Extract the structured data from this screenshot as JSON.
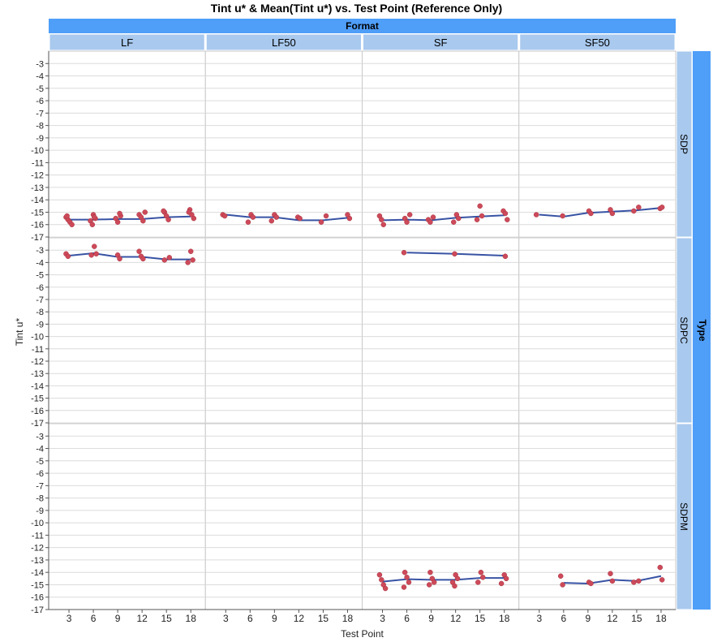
{
  "chart_data": {
    "type": "scatter",
    "title": "Tint u* & Mean(Tint u*) vs. Test Point (Reference Only)",
    "xlabel": "Test Point",
    "ylabel": "Tint u*",
    "column_group_label": "Format",
    "row_group_label": "Type",
    "columns": [
      "LF",
      "LF50",
      "SF",
      "SF50"
    ],
    "rows": [
      "SDP",
      "SDPC",
      "SDPM"
    ],
    "x_ticks": [
      3,
      6,
      9,
      12,
      15,
      18
    ],
    "y_ticks": [
      -3,
      -4,
      -5,
      -6,
      -7,
      -8,
      -9,
      -10,
      -11,
      -12,
      -13,
      -14,
      -15,
      -16,
      -17
    ],
    "xlim": [
      0.5,
      19.8
    ],
    "ylim": [
      -17,
      -2
    ],
    "grid": true,
    "colors": {
      "points": "#cd4a5a",
      "mean_line": "#3853a4",
      "header": "#4f9ef8",
      "strip": "#a9c9ee",
      "grid": "#dcdcdc"
    },
    "panels": [
      {
        "column": "LF",
        "row": "SDP",
        "points": [
          [
            3,
            -15.4
          ],
          [
            3,
            -15.6
          ],
          [
            3,
            -15.8
          ],
          [
            3,
            -16.0
          ],
          [
            3,
            -15.3
          ],
          [
            6,
            -15.2
          ],
          [
            6,
            -15.5
          ],
          [
            6,
            -15.7
          ],
          [
            6,
            -16.0
          ],
          [
            6,
            -15.4
          ],
          [
            9,
            -15.3
          ],
          [
            9,
            -15.5
          ],
          [
            9,
            -15.8
          ],
          [
            9,
            -15.1
          ],
          [
            12,
            -15.2
          ],
          [
            12,
            -15.4
          ],
          [
            12,
            -15.7
          ],
          [
            12,
            -15.0
          ],
          [
            15,
            -15.0
          ],
          [
            15,
            -15.3
          ],
          [
            15,
            -15.6
          ],
          [
            15,
            -14.9
          ],
          [
            18,
            -14.8
          ],
          [
            18,
            -15.2
          ],
          [
            18,
            -15.5
          ],
          [
            18,
            -15.0
          ]
        ],
        "mean": [
          [
            3,
            -15.6
          ],
          [
            6,
            -15.6
          ],
          [
            9,
            -15.55
          ],
          [
            12,
            -15.55
          ],
          [
            15,
            -15.4
          ],
          [
            18,
            -15.35
          ]
        ]
      },
      {
        "column": "LF",
        "row": "SDPC",
        "points": [
          [
            3,
            -3.3
          ],
          [
            3,
            -3.5
          ],
          [
            6,
            -2.7
          ],
          [
            6,
            -3.3
          ],
          [
            6,
            -3.4
          ],
          [
            9,
            -3.4
          ],
          [
            9,
            -3.7
          ],
          [
            12,
            -3.1
          ],
          [
            12,
            -3.5
          ],
          [
            12,
            -3.7
          ],
          [
            15,
            -3.6
          ],
          [
            15,
            -3.8
          ],
          [
            18,
            -3.1
          ],
          [
            18,
            -3.8
          ],
          [
            18,
            -4.0
          ]
        ],
        "mean": [
          [
            3,
            -3.45
          ],
          [
            6,
            -3.25
          ],
          [
            9,
            -3.55
          ],
          [
            12,
            -3.55
          ],
          [
            15,
            -3.75
          ],
          [
            18,
            -3.75
          ]
        ]
      },
      {
        "column": "LF",
        "row": "SDPM",
        "points": [],
        "mean": []
      },
      {
        "column": "LF50",
        "row": "SDP",
        "points": [
          [
            3,
            -15.2
          ],
          [
            3,
            -15.3
          ],
          [
            6,
            -15.2
          ],
          [
            6,
            -15.4
          ],
          [
            6,
            -15.8
          ],
          [
            9,
            -15.2
          ],
          [
            9,
            -15.4
          ],
          [
            9,
            -15.7
          ],
          [
            12,
            -15.4
          ],
          [
            12,
            -15.5
          ],
          [
            15,
            -15.3
          ],
          [
            15,
            -15.8
          ],
          [
            18,
            -15.2
          ],
          [
            18,
            -15.5
          ]
        ],
        "mean": [
          [
            3,
            -15.2
          ],
          [
            6,
            -15.4
          ],
          [
            9,
            -15.4
          ],
          [
            12,
            -15.65
          ],
          [
            15,
            -15.65
          ],
          [
            18,
            -15.45
          ]
        ]
      },
      {
        "column": "LF50",
        "row": "SDPC",
        "points": [],
        "mean": []
      },
      {
        "column": "LF50",
        "row": "SDPM",
        "points": [],
        "mean": []
      },
      {
        "column": "SF",
        "row": "SDP",
        "points": [
          [
            3,
            -15.3
          ],
          [
            3,
            -15.6
          ],
          [
            3,
            -16.0
          ],
          [
            6,
            -15.2
          ],
          [
            6,
            -15.5
          ],
          [
            6,
            -15.8
          ],
          [
            9,
            -15.4
          ],
          [
            9,
            -15.6
          ],
          [
            9,
            -15.8
          ],
          [
            12,
            -15.2
          ],
          [
            12,
            -15.5
          ],
          [
            12,
            -15.8
          ],
          [
            15,
            -14.5
          ],
          [
            15,
            -15.3
          ],
          [
            15,
            -15.6
          ],
          [
            18,
            -14.9
          ],
          [
            18,
            -15.1
          ],
          [
            18,
            -15.6
          ]
        ],
        "mean": [
          [
            3,
            -15.65
          ],
          [
            6,
            -15.6
          ],
          [
            9,
            -15.65
          ],
          [
            12,
            -15.45
          ],
          [
            15,
            -15.35
          ],
          [
            18,
            -15.25
          ]
        ]
      },
      {
        "column": "SF",
        "row": "SDPC",
        "points": [
          [
            6,
            -3.2
          ],
          [
            12,
            -3.3
          ],
          [
            18,
            -3.5
          ]
        ],
        "mean": [
          [
            6,
            -3.2
          ],
          [
            12,
            -3.3
          ],
          [
            18,
            -3.45
          ]
        ]
      },
      {
        "column": "SF",
        "row": "SDPM",
        "points": [
          [
            3,
            -14.2
          ],
          [
            3,
            -14.6
          ],
          [
            3,
            -15.0
          ],
          [
            3,
            -15.3
          ],
          [
            6,
            -14.0
          ],
          [
            6,
            -14.4
          ],
          [
            6,
            -14.8
          ],
          [
            6,
            -15.2
          ],
          [
            9,
            -14.0
          ],
          [
            9,
            -14.5
          ],
          [
            9,
            -14.8
          ],
          [
            9,
            -15.0
          ],
          [
            12,
            -14.2
          ],
          [
            12,
            -14.5
          ],
          [
            12,
            -14.8
          ],
          [
            12,
            -15.1
          ],
          [
            15,
            -14.0
          ],
          [
            15,
            -14.4
          ],
          [
            15,
            -14.8
          ],
          [
            18,
            -14.2
          ],
          [
            18,
            -14.5
          ],
          [
            18,
            -14.9
          ]
        ],
        "mean": [
          [
            3,
            -14.75
          ],
          [
            6,
            -14.55
          ],
          [
            9,
            -14.6
          ],
          [
            12,
            -14.6
          ],
          [
            15,
            -14.45
          ],
          [
            18,
            -14.45
          ]
        ]
      },
      {
        "column": "SF50",
        "row": "SDP",
        "points": [
          [
            3,
            -15.2
          ],
          [
            6,
            -15.3
          ],
          [
            9,
            -14.9
          ],
          [
            9,
            -15.1
          ],
          [
            12,
            -14.8
          ],
          [
            12,
            -15.1
          ],
          [
            15,
            -14.6
          ],
          [
            15,
            -14.9
          ],
          [
            18,
            -14.7
          ],
          [
            18,
            -14.6
          ]
        ],
        "mean": [
          [
            3,
            -15.2
          ],
          [
            6,
            -15.35
          ],
          [
            9,
            -15.05
          ],
          [
            12,
            -14.95
          ],
          [
            15,
            -14.85
          ],
          [
            18,
            -14.65
          ]
        ]
      },
      {
        "column": "SF50",
        "row": "SDPC",
        "points": [],
        "mean": []
      },
      {
        "column": "SF50",
        "row": "SDPM",
        "points": [
          [
            6,
            -14.3
          ],
          [
            6,
            -15.0
          ],
          [
            9,
            -14.8
          ],
          [
            9,
            -14.9
          ],
          [
            12,
            -14.1
          ],
          [
            12,
            -14.7
          ],
          [
            15,
            -14.7
          ],
          [
            15,
            -14.8
          ],
          [
            18,
            -13.6
          ],
          [
            18,
            -14.6
          ]
        ],
        "mean": [
          [
            6,
            -14.85
          ],
          [
            9,
            -14.9
          ],
          [
            12,
            -14.6
          ],
          [
            15,
            -14.7
          ],
          [
            18,
            -14.3
          ]
        ]
      }
    ]
  }
}
